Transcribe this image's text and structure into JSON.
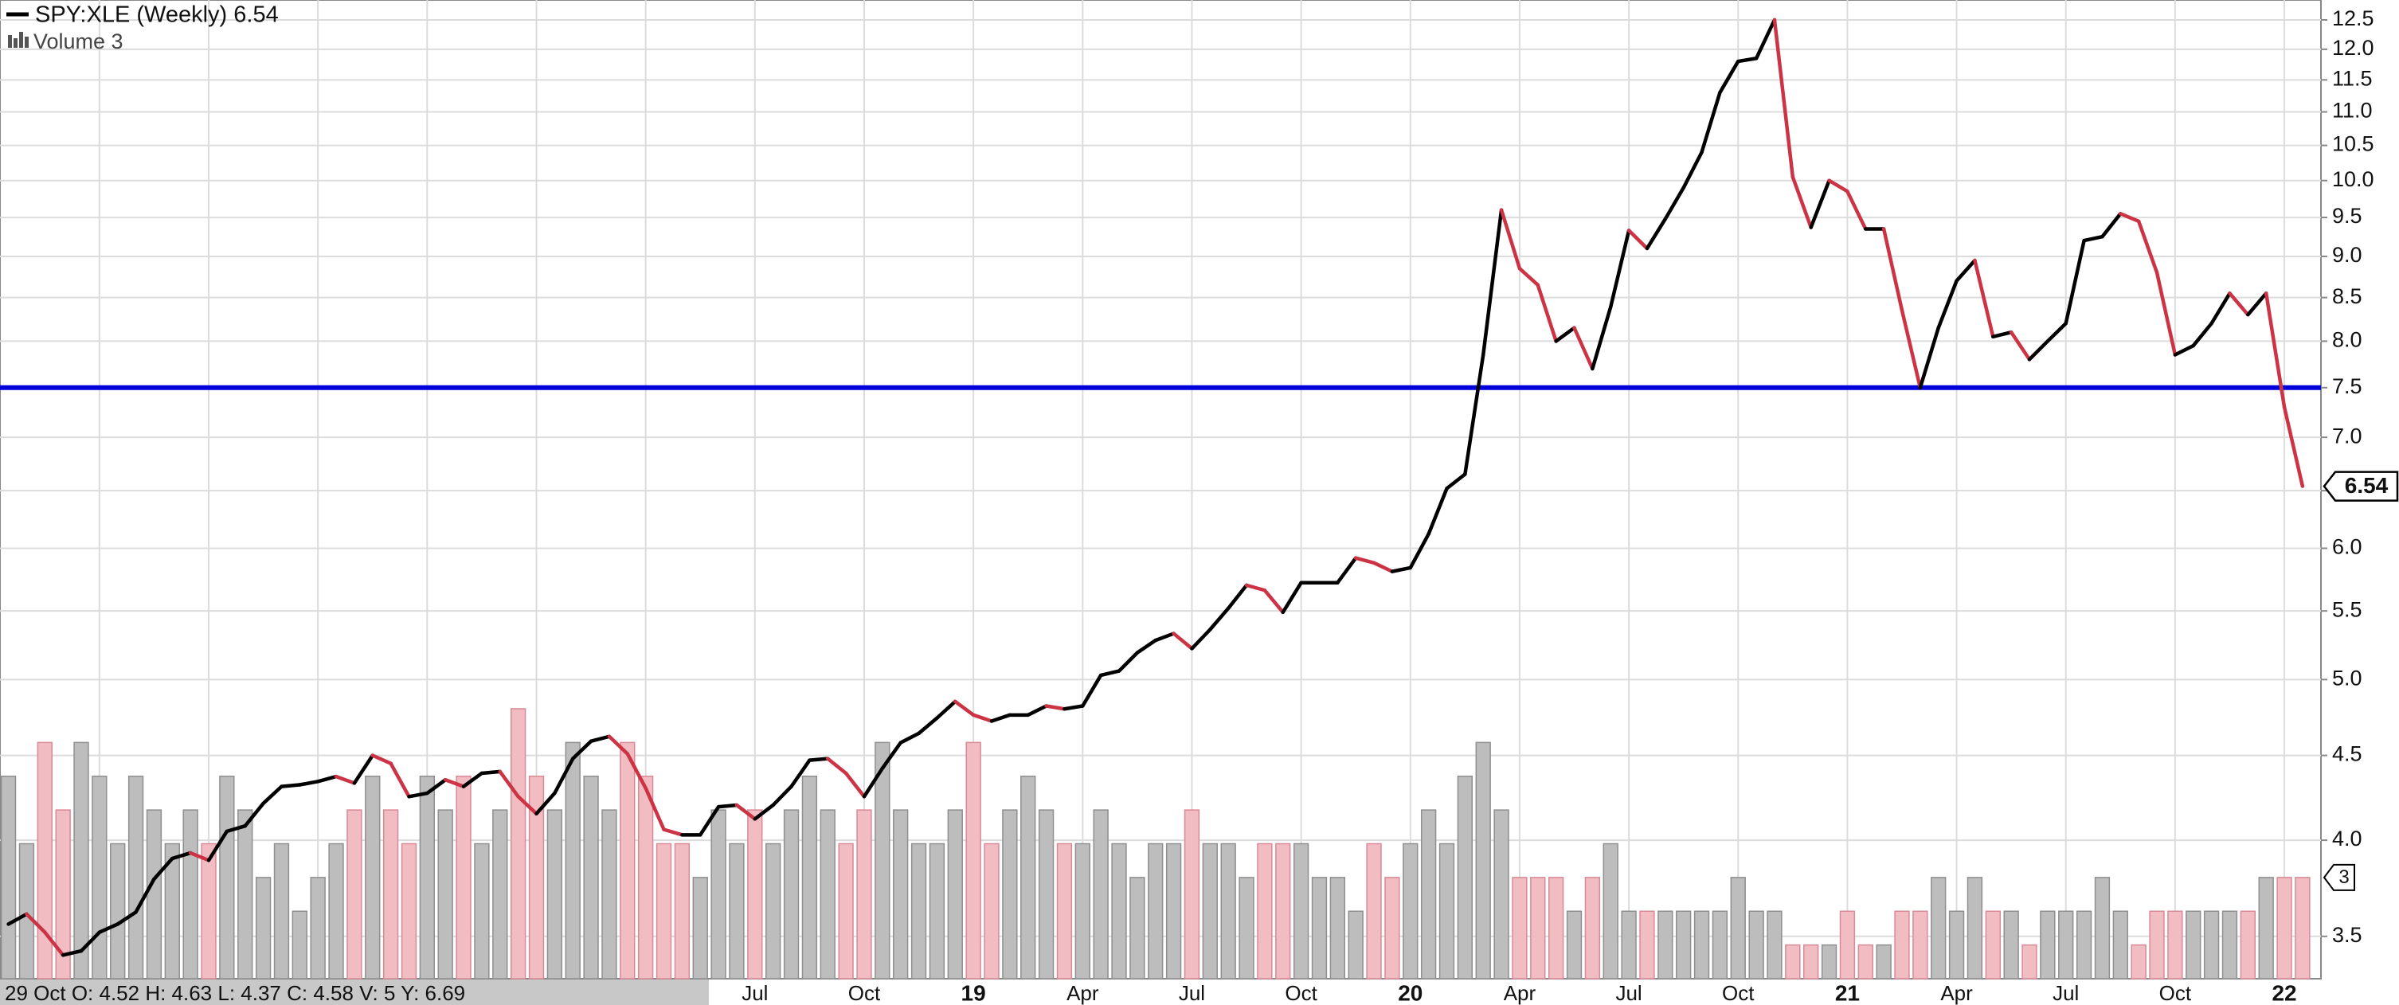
{
  "chart_data": {
    "type": "line",
    "log_scale": true,
    "grid": true,
    "info": "29 Oct O: 4.52 H: 4.63 L: 4.37 C: 4.58 V: 5 Y: 6.69",
    "categories": [
      null,
      null,
      null,
      null,
      null,
      null,
      null,
      null,
      null,
      null,
      null,
      null,
      null,
      null,
      null,
      null,
      null,
      null,
      null,
      null,
      null,
      null,
      null,
      null,
      null,
      null,
      null,
      null,
      null,
      null,
      null,
      null,
      null,
      null,
      null,
      null,
      null,
      null,
      null,
      null,
      null,
      "Jul",
      null,
      null,
      null,
      null,
      null,
      "Oct",
      null,
      null,
      null,
      null,
      null,
      "19",
      null,
      null,
      null,
      null,
      null,
      "Apr",
      null,
      null,
      null,
      null,
      null,
      "Jul",
      null,
      null,
      null,
      null,
      null,
      "Oct",
      null,
      null,
      null,
      null,
      null,
      "20",
      null,
      null,
      null,
      null,
      null,
      "Apr",
      null,
      null,
      null,
      null,
      null,
      "Jul",
      null,
      null,
      null,
      null,
      null,
      "Oct",
      null,
      null,
      null,
      null,
      null,
      "21",
      null,
      null,
      null,
      null,
      null,
      "Apr",
      null,
      null,
      null,
      null,
      null,
      "Jul",
      null,
      null,
      null,
      null,
      null,
      "Oct",
      null,
      null,
      null,
      null,
      null,
      "22",
      null
    ],
    "series": [
      {
        "name": "SPY:XLE (Weekly) 6.54",
        "color": "#000000",
        "down_color": "#cc3344",
        "values": [
          3.56,
          3.61,
          3.52,
          3.41,
          3.43,
          3.52,
          3.56,
          3.62,
          3.79,
          3.9,
          3.93,
          3.89,
          4.05,
          4.08,
          4.21,
          4.31,
          4.32,
          4.34,
          4.37,
          4.33,
          4.5,
          4.45,
          4.25,
          4.27,
          4.35,
          4.31,
          4.39,
          4.4,
          4.25,
          4.15,
          4.27,
          4.48,
          4.59,
          4.62,
          4.51,
          4.3,
          4.06,
          4.03,
          4.03,
          4.19,
          4.2,
          4.12,
          4.2,
          4.31,
          4.47,
          4.48,
          4.39,
          4.25,
          4.42,
          4.58,
          4.64,
          4.74,
          4.85,
          4.76,
          4.72,
          4.76,
          4.76,
          4.82,
          4.8,
          4.82,
          5.03,
          5.06,
          5.19,
          5.28,
          5.33,
          5.22,
          5.36,
          5.52,
          5.7,
          5.66,
          5.49,
          5.72,
          5.72,
          5.72,
          5.92,
          5.88,
          5.81,
          5.84,
          6.12,
          6.52,
          6.65,
          7.85,
          9.6,
          8.85,
          8.65,
          8.0,
          8.15,
          7.7,
          8.39,
          9.33,
          9.1,
          9.48,
          9.9,
          10.4,
          11.3,
          11.8,
          11.85,
          12.5,
          10.05,
          9.37,
          10.0,
          9.85,
          9.35,
          9.35,
          8.35,
          7.5,
          8.15,
          8.7,
          8.95,
          8.05,
          8.1,
          7.8,
          8.0,
          8.2,
          9.2,
          9.25,
          9.55,
          9.45,
          8.8,
          7.85,
          7.95,
          8.2,
          8.55,
          8.3,
          8.55,
          7.3,
          6.54
        ]
      },
      {
        "name": "Volume 3",
        "type": "bar",
        "axis": "y2",
        "color": "#bdbdbd",
        "down_color": "#f2bcc3",
        "values": [
          6,
          4,
          7,
          5,
          7,
          6,
          4,
          6,
          5,
          4,
          5,
          4,
          6,
          5,
          3,
          4,
          2,
          3,
          4,
          5,
          6,
          5,
          4,
          6,
          5,
          6,
          4,
          5,
          8,
          6,
          5,
          7,
          6,
          5,
          7,
          6,
          4,
          4,
          3,
          5,
          4,
          5,
          4,
          5,
          6,
          5,
          4,
          5,
          7,
          5,
          4,
          4,
          5,
          7,
          4,
          5,
          6,
          5,
          4,
          4,
          5,
          4,
          3,
          4,
          4,
          5,
          4,
          4,
          3,
          4,
          4,
          4,
          3,
          3,
          2,
          4,
          3,
          4,
          5,
          4,
          6,
          7,
          5,
          3,
          3,
          3,
          2,
          3,
          4,
          2,
          2,
          2,
          2,
          2,
          2,
          3,
          2,
          2,
          1,
          1,
          1,
          2,
          1,
          1,
          2,
          2,
          3,
          2,
          3,
          2,
          2,
          1,
          2,
          2,
          2,
          3,
          2,
          1,
          2,
          2,
          2,
          2,
          2,
          2,
          3,
          3,
          3
        ]
      }
    ],
    "hlines": [
      {
        "value": 7.5,
        "color": "#0000dd"
      }
    ],
    "ylim": [
      3.3,
      12.85
    ],
    "yticks": [
      3.5,
      {
        "value": 4,
        "label": "4.0"
      },
      4.5,
      {
        "value": 5,
        "label": "5.0"
      },
      5.5,
      {
        "value": 6,
        "label": "6.0"
      },
      6.5,
      {
        "value": 7,
        "label": "7.0"
      },
      7.5,
      {
        "value": 8,
        "label": "8.0"
      },
      8.5,
      {
        "value": 9,
        "label": "9.0"
      },
      9.5,
      {
        "value": 10,
        "label": "10.0"
      },
      10.5,
      {
        "value": 11,
        "label": "11.0"
      },
      11.5,
      {
        "value": 12,
        "label": "12.0"
      },
      12.5
    ],
    "y2lim": [
      0,
      29
    ]
  }
}
